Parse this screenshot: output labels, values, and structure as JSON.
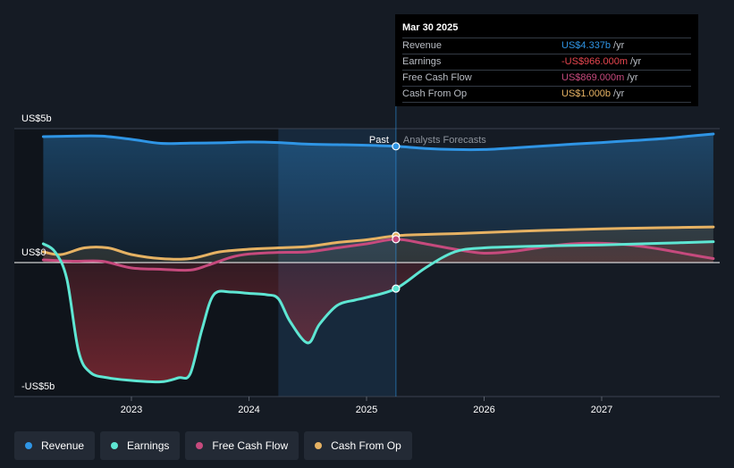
{
  "colors": {
    "revenue": "#2f95e5",
    "earnings": "#5ee6d3",
    "fcf": "#c64a7d",
    "cfo": "#e6b263",
    "background": "#151b24"
  },
  "tooltip": {
    "date": "Mar 30 2025",
    "rows": [
      {
        "label": "Revenue",
        "value": "US$4.337b",
        "unit": "/yr",
        "color": "#2f95e5"
      },
      {
        "label": "Earnings",
        "value": "-US$966.000m",
        "unit": "/yr",
        "color": "#e8464f"
      },
      {
        "label": "Free Cash Flow",
        "value": "US$869.000m",
        "unit": "/yr",
        "color": "#c64a7d"
      },
      {
        "label": "Cash From Op",
        "value": "US$1.000b",
        "unit": "/yr",
        "color": "#e6b263"
      }
    ]
  },
  "labels": {
    "past": "Past",
    "forecast": "Analysts Forecasts"
  },
  "legend": [
    {
      "label": "Revenue",
      "color": "#2f95e5"
    },
    {
      "label": "Earnings",
      "color": "#5ee6d3"
    },
    {
      "label": "Free Cash Flow",
      "color": "#c64a7d"
    },
    {
      "label": "Cash From Op",
      "color": "#e6b263"
    }
  ],
  "chart_data": {
    "type": "line",
    "y_tick_labels": [
      "US$5b",
      "US$0",
      "-US$5b"
    ],
    "y_ticks": [
      5,
      0,
      -5
    ],
    "ylim": [
      -5,
      5
    ],
    "xlim": [
      2022.2,
      2028.0
    ],
    "x_ticks": [
      2023,
      2024,
      2025,
      2026,
      2027
    ],
    "x_tick_labels": [
      "2023",
      "2024",
      "2025",
      "2026",
      "2027"
    ],
    "past_forecast_boundary": 2025.25,
    "highlight_start": 2024.25,
    "grid": false,
    "legend_position": "bottom-left",
    "series": [
      {
        "name": "Revenue",
        "key": "revenue",
        "points": [
          [
            2022.25,
            4.7
          ],
          [
            2022.5,
            4.72
          ],
          [
            2022.75,
            4.72
          ],
          [
            2023.0,
            4.6
          ],
          [
            2023.25,
            4.45
          ],
          [
            2023.5,
            4.46
          ],
          [
            2023.75,
            4.47
          ],
          [
            2024.0,
            4.5
          ],
          [
            2024.25,
            4.48
          ],
          [
            2024.5,
            4.42
          ],
          [
            2024.75,
            4.4
          ],
          [
            2025.0,
            4.38
          ],
          [
            2025.25,
            4.34
          ],
          [
            2025.5,
            4.26
          ],
          [
            2025.75,
            4.22
          ],
          [
            2026.0,
            4.22
          ],
          [
            2026.25,
            4.28
          ],
          [
            2026.5,
            4.35
          ],
          [
            2026.75,
            4.42
          ],
          [
            2027.0,
            4.48
          ],
          [
            2027.25,
            4.55
          ],
          [
            2027.5,
            4.62
          ],
          [
            2027.75,
            4.72
          ],
          [
            2027.95,
            4.8
          ]
        ]
      },
      {
        "name": "Earnings",
        "key": "earnings",
        "points": [
          [
            2022.25,
            0.7
          ],
          [
            2022.35,
            0.4
          ],
          [
            2022.45,
            -0.6
          ],
          [
            2022.55,
            -3.3
          ],
          [
            2022.65,
            -4.1
          ],
          [
            2022.8,
            -4.3
          ],
          [
            2023.0,
            -4.4
          ],
          [
            2023.25,
            -4.45
          ],
          [
            2023.4,
            -4.3
          ],
          [
            2023.5,
            -4.15
          ],
          [
            2023.6,
            -2.5
          ],
          [
            2023.7,
            -1.2
          ],
          [
            2023.85,
            -1.1
          ],
          [
            2024.0,
            -1.15
          ],
          [
            2024.15,
            -1.2
          ],
          [
            2024.25,
            -1.35
          ],
          [
            2024.35,
            -2.2
          ],
          [
            2024.5,
            -3.0
          ],
          [
            2024.6,
            -2.3
          ],
          [
            2024.75,
            -1.6
          ],
          [
            2024.9,
            -1.4
          ],
          [
            2025.0,
            -1.3
          ],
          [
            2025.25,
            -0.97
          ],
          [
            2025.5,
            -0.2
          ],
          [
            2025.75,
            0.4
          ],
          [
            2026.0,
            0.55
          ],
          [
            2026.5,
            0.62
          ],
          [
            2027.0,
            0.66
          ],
          [
            2027.5,
            0.72
          ],
          [
            2027.95,
            0.78
          ]
        ]
      },
      {
        "name": "Free Cash Flow",
        "key": "fcf",
        "points": [
          [
            2022.25,
            0.1
          ],
          [
            2022.5,
            0.05
          ],
          [
            2022.75,
            0.05
          ],
          [
            2023.0,
            -0.2
          ],
          [
            2023.25,
            -0.25
          ],
          [
            2023.5,
            -0.28
          ],
          [
            2023.65,
            -0.1
          ],
          [
            2023.85,
            0.2
          ],
          [
            2024.0,
            0.32
          ],
          [
            2024.25,
            0.38
          ],
          [
            2024.5,
            0.4
          ],
          [
            2024.75,
            0.55
          ],
          [
            2025.0,
            0.7
          ],
          [
            2025.25,
            0.87
          ],
          [
            2025.5,
            0.7
          ],
          [
            2025.75,
            0.5
          ],
          [
            2026.0,
            0.35
          ],
          [
            2026.25,
            0.42
          ],
          [
            2026.5,
            0.58
          ],
          [
            2026.75,
            0.7
          ],
          [
            2027.0,
            0.72
          ],
          [
            2027.25,
            0.65
          ],
          [
            2027.5,
            0.5
          ],
          [
            2027.75,
            0.3
          ],
          [
            2027.95,
            0.15
          ]
        ]
      },
      {
        "name": "Cash From Op",
        "key": "cfo",
        "points": [
          [
            2022.25,
            0.4
          ],
          [
            2022.4,
            0.3
          ],
          [
            2022.6,
            0.55
          ],
          [
            2022.8,
            0.55
          ],
          [
            2023.0,
            0.3
          ],
          [
            2023.25,
            0.15
          ],
          [
            2023.5,
            0.15
          ],
          [
            2023.75,
            0.4
          ],
          [
            2024.0,
            0.5
          ],
          [
            2024.25,
            0.55
          ],
          [
            2024.5,
            0.6
          ],
          [
            2024.75,
            0.75
          ],
          [
            2025.0,
            0.85
          ],
          [
            2025.25,
            1.0
          ],
          [
            2025.5,
            1.05
          ],
          [
            2025.75,
            1.08
          ],
          [
            2026.0,
            1.12
          ],
          [
            2026.5,
            1.2
          ],
          [
            2027.0,
            1.26
          ],
          [
            2027.5,
            1.3
          ],
          [
            2027.95,
            1.33
          ]
        ]
      }
    ],
    "markers_at": 2025.25
  }
}
